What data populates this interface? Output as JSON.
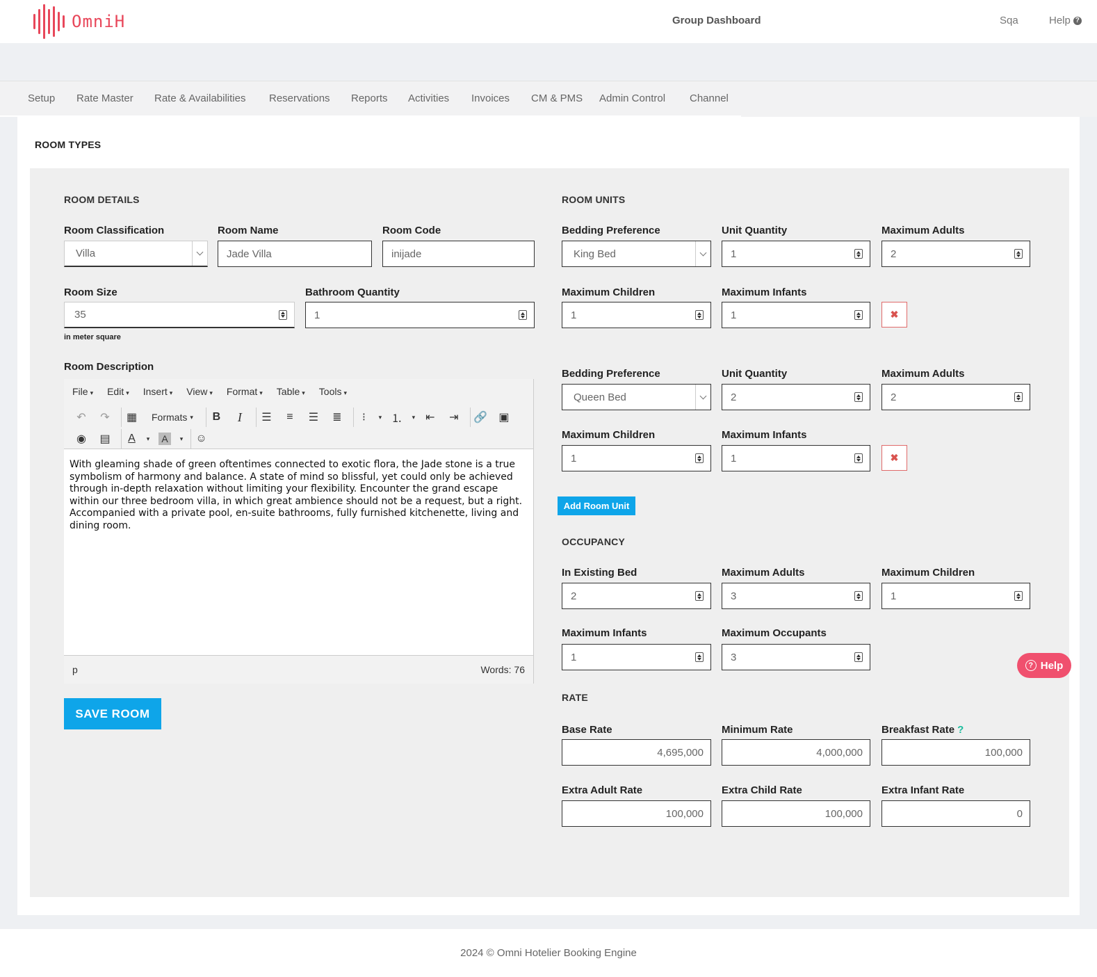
{
  "brand": {
    "name": "OmniH",
    "color": "#e8475a"
  },
  "header": {
    "dashboard_link": "Group Dashboard",
    "user": "Sqa",
    "help": "Help"
  },
  "nav": [
    "Setup",
    "Rate Master",
    "Rate & Availabilities",
    "Reservations",
    "Reports",
    "Activities",
    "Invoices",
    "CM & PMS",
    "Admin Control",
    "Channel"
  ],
  "page_title": "ROOM TYPES",
  "room_details": {
    "heading": "ROOM DETAILS",
    "classification": {
      "label": "Room Classification",
      "value": "Villa"
    },
    "name": {
      "label": "Room Name",
      "value": "Jade Villa"
    },
    "code": {
      "label": "Room Code",
      "value": "inijade"
    },
    "size": {
      "label": "Room Size",
      "value": "35",
      "hint": "in meter square"
    },
    "bathroom": {
      "label": "Bathroom Quantity",
      "value": "1"
    },
    "description": {
      "label": "Room Description",
      "menu": [
        "File",
        "Edit",
        "Insert",
        "View",
        "Format",
        "Table",
        "Tools"
      ],
      "formats_label": "Formats",
      "text": "With gleaming shade of green oftentimes connected to exotic flora, the Jade stone is a true symbolism of harmony and balance. A state of mind so blissful, yet could only be achieved through in-depth relaxation without limiting your flexibility. Encounter the grand escape within our three bedroom villa, in which great ambience should not be a request, but a right. Accompanied with a private pool, en-suite bathrooms, fully furnished kitchenette, living and dining room.",
      "path": "p",
      "word_count": "Words: 76"
    },
    "save_label": "SAVE ROOM"
  },
  "room_units": {
    "heading": "ROOM UNITS",
    "labels": {
      "bedding": "Bedding Preference",
      "quantity": "Unit Quantity",
      "max_adults": "Maximum Adults",
      "max_children": "Maximum Children",
      "max_infants": "Maximum Infants"
    },
    "units": [
      {
        "bedding": "King Bed",
        "quantity": "1",
        "max_adults": "2",
        "max_children": "1",
        "max_infants": "1"
      },
      {
        "bedding": "Queen Bed",
        "quantity": "2",
        "max_adults": "2",
        "max_children": "1",
        "max_infants": "1"
      }
    ],
    "add_label": "Add Room Unit"
  },
  "occupancy": {
    "heading": "OCCUPANCY",
    "existing_bed": {
      "label": "In Existing Bed",
      "value": "2"
    },
    "max_adults": {
      "label": "Maximum Adults",
      "value": "3"
    },
    "max_children": {
      "label": "Maximum Children",
      "value": "1"
    },
    "max_infants": {
      "label": "Maximum Infants",
      "value": "1"
    },
    "max_occupants": {
      "label": "Maximum Occupants",
      "value": "3"
    }
  },
  "rate": {
    "heading": "RATE",
    "base": {
      "label": "Base Rate",
      "value": "4,695,000"
    },
    "minimum": {
      "label": "Minimum Rate",
      "value": "4,000,000"
    },
    "breakfast": {
      "label": "Breakfast Rate",
      "value": "100,000",
      "help": "?"
    },
    "extra_adult": {
      "label": "Extra Adult Rate",
      "value": "100,000"
    },
    "extra_child": {
      "label": "Extra Child Rate",
      "value": "100,000"
    },
    "extra_infant": {
      "label": "Extra Infant Rate",
      "value": "0"
    }
  },
  "floating_help": "Help",
  "footer": "2024 © Omni Hotelier Booking Engine",
  "colors": {
    "accent": "#0ea5e9",
    "help_button": "#f0506e",
    "delete": "#d9534f"
  }
}
